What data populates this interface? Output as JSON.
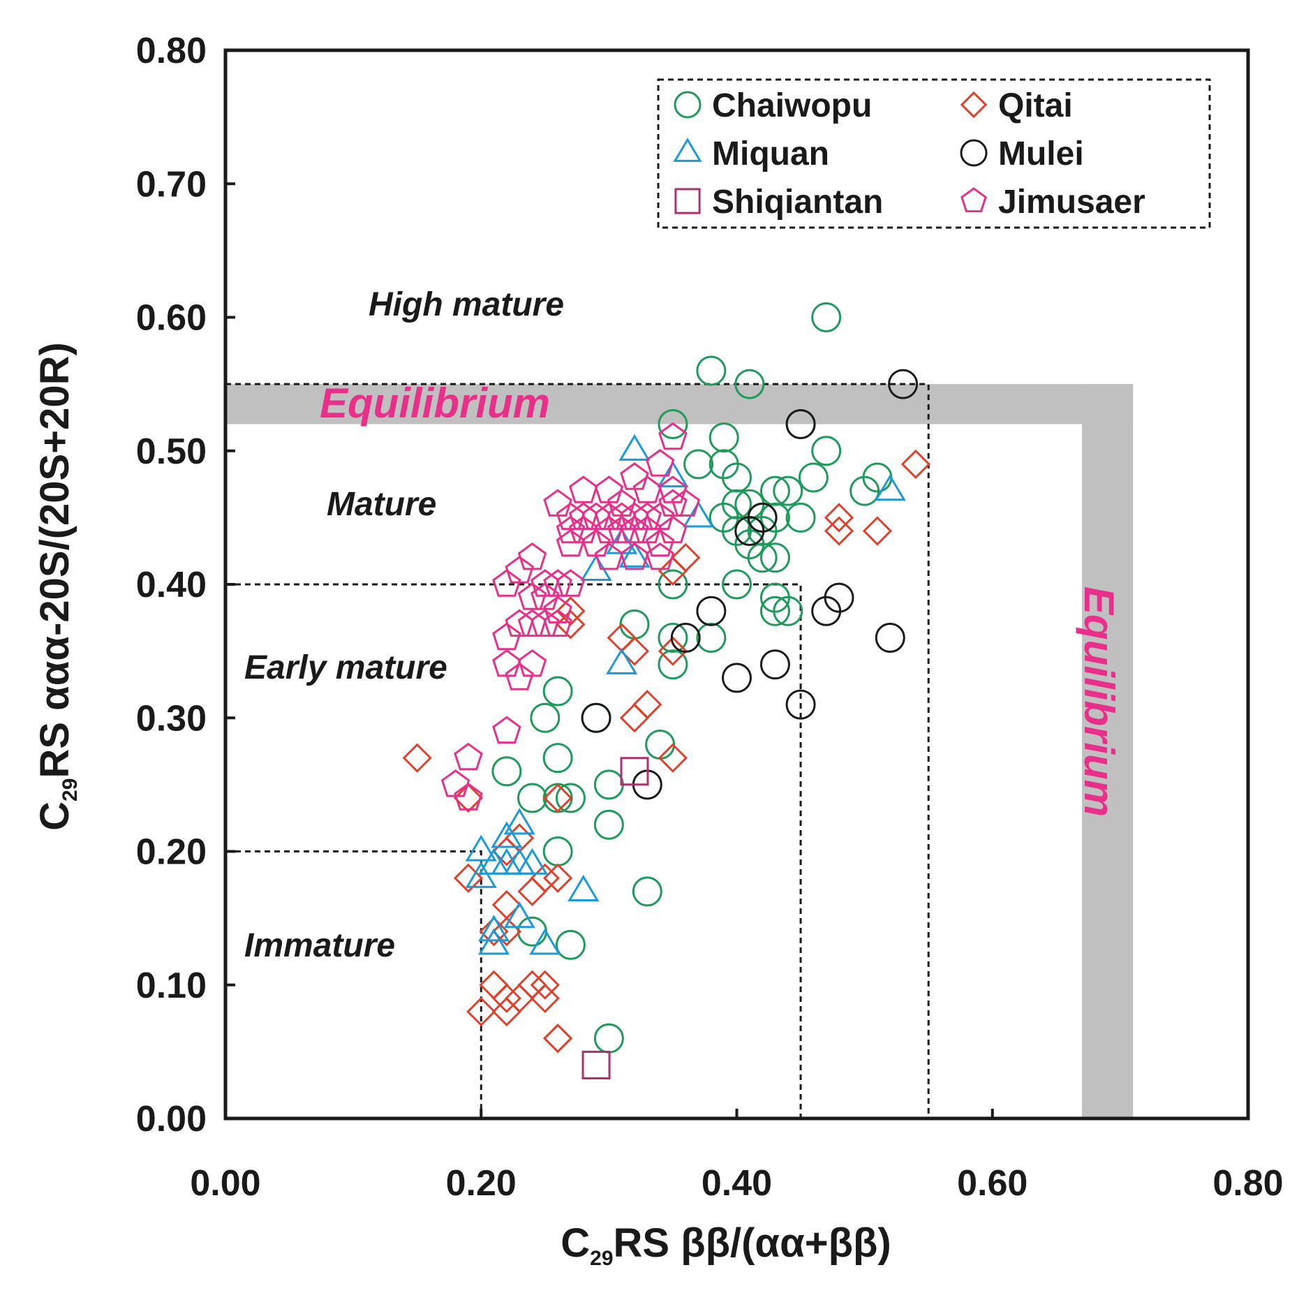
{
  "chart_data": {
    "type": "scatter",
    "xlabel_main": "C",
    "xlabel_sub": "29",
    "xlabel_rest": "RS ββ/(αα+ββ)",
    "ylabel_main": "C",
    "ylabel_sub": "29",
    "ylabel_rest": "RS ααα-20S/(20S+20R)",
    "xlim": [
      0,
      0.8
    ],
    "ylim": [
      0,
      0.8
    ],
    "xticks": [
      "0.00",
      "0.20",
      "0.40",
      "0.60",
      "0.80"
    ],
    "yticks": [
      "0.00",
      "0.10",
      "0.20",
      "0.30",
      "0.40",
      "0.50",
      "0.60",
      "0.70",
      "0.80"
    ],
    "legend_position": "top-right",
    "zones": {
      "high_mature": "High mature",
      "mature": "Mature",
      "early_mature": "Early mature",
      "immature": "Immature",
      "equilibrium_h": "Equilibrium",
      "equilibrium_v": "Equilibrium"
    },
    "equilibrium_bands": {
      "horizontal_y": [
        0.52,
        0.55
      ],
      "vertical_x": [
        0.67,
        0.71
      ],
      "color": "#c0c0c0"
    },
    "maturity_boundaries": [
      {
        "x": 0.2,
        "y": 0.2
      },
      {
        "x": 0.45,
        "y": 0.4
      },
      {
        "x": 0.55,
        "y": 0.55
      }
    ],
    "series": [
      {
        "name": "Chaiwopu",
        "marker": "circle",
        "color": "#1e9a5a",
        "points": [
          [
            0.47,
            0.6
          ],
          [
            0.38,
            0.56
          ],
          [
            0.41,
            0.55
          ],
          [
            0.35,
            0.52
          ],
          [
            0.45,
            0.52
          ],
          [
            0.39,
            0.51
          ],
          [
            0.37,
            0.49
          ],
          [
            0.39,
            0.49
          ],
          [
            0.4,
            0.48
          ],
          [
            0.47,
            0.5
          ],
          [
            0.46,
            0.48
          ],
          [
            0.43,
            0.47
          ],
          [
            0.44,
            0.47
          ],
          [
            0.4,
            0.46
          ],
          [
            0.41,
            0.46
          ],
          [
            0.42,
            0.45
          ],
          [
            0.43,
            0.45
          ],
          [
            0.45,
            0.45
          ],
          [
            0.39,
            0.45
          ],
          [
            0.4,
            0.44
          ],
          [
            0.42,
            0.44
          ],
          [
            0.41,
            0.43
          ],
          [
            0.42,
            0.42
          ],
          [
            0.43,
            0.42
          ],
          [
            0.4,
            0.4
          ],
          [
            0.43,
            0.39
          ],
          [
            0.43,
            0.38
          ],
          [
            0.44,
            0.38
          ],
          [
            0.35,
            0.4
          ],
          [
            0.35,
            0.36
          ],
          [
            0.38,
            0.36
          ],
          [
            0.35,
            0.34
          ],
          [
            0.32,
            0.37
          ],
          [
            0.5,
            0.47
          ],
          [
            0.51,
            0.48
          ],
          [
            0.26,
            0.32
          ],
          [
            0.25,
            0.3
          ],
          [
            0.26,
            0.27
          ],
          [
            0.22,
            0.26
          ],
          [
            0.24,
            0.24
          ],
          [
            0.26,
            0.24
          ],
          [
            0.27,
            0.24
          ],
          [
            0.3,
            0.25
          ],
          [
            0.3,
            0.22
          ],
          [
            0.29,
            0.3
          ],
          [
            0.34,
            0.28
          ],
          [
            0.33,
            0.17
          ],
          [
            0.26,
            0.2
          ],
          [
            0.24,
            0.14
          ],
          [
            0.27,
            0.13
          ],
          [
            0.3,
            0.06
          ]
        ]
      },
      {
        "name": "Qitai",
        "marker": "diamond",
        "color": "#e0402a",
        "points": [
          [
            0.54,
            0.49
          ],
          [
            0.48,
            0.45
          ],
          [
            0.48,
            0.44
          ],
          [
            0.51,
            0.44
          ],
          [
            0.36,
            0.42
          ],
          [
            0.35,
            0.41
          ],
          [
            0.27,
            0.38
          ],
          [
            0.27,
            0.37
          ],
          [
            0.31,
            0.36
          ],
          [
            0.32,
            0.35
          ],
          [
            0.35,
            0.35
          ],
          [
            0.33,
            0.31
          ],
          [
            0.32,
            0.3
          ],
          [
            0.35,
            0.27
          ],
          [
            0.15,
            0.27
          ],
          [
            0.19,
            0.24
          ],
          [
            0.26,
            0.24
          ],
          [
            0.23,
            0.21
          ],
          [
            0.22,
            0.2
          ],
          [
            0.19,
            0.18
          ],
          [
            0.25,
            0.18
          ],
          [
            0.26,
            0.18
          ],
          [
            0.24,
            0.17
          ],
          [
            0.22,
            0.16
          ],
          [
            0.21,
            0.14
          ],
          [
            0.22,
            0.14
          ],
          [
            0.21,
            0.1
          ],
          [
            0.23,
            0.09
          ],
          [
            0.22,
            0.09
          ],
          [
            0.24,
            0.1
          ],
          [
            0.25,
            0.1
          ],
          [
            0.25,
            0.09
          ],
          [
            0.2,
            0.08
          ],
          [
            0.22,
            0.08
          ],
          [
            0.26,
            0.06
          ],
          [
            0.26,
            0.06
          ]
        ]
      },
      {
        "name": "Miquan",
        "marker": "triangle",
        "color": "#1a9ad6",
        "points": [
          [
            0.32,
            0.5
          ],
          [
            0.35,
            0.48
          ],
          [
            0.37,
            0.45
          ],
          [
            0.52,
            0.47
          ],
          [
            0.31,
            0.43
          ],
          [
            0.29,
            0.41
          ],
          [
            0.32,
            0.42
          ],
          [
            0.31,
            0.34
          ],
          [
            0.23,
            0.22
          ],
          [
            0.22,
            0.21
          ],
          [
            0.2,
            0.2
          ],
          [
            0.21,
            0.19
          ],
          [
            0.22,
            0.19
          ],
          [
            0.23,
            0.19
          ],
          [
            0.2,
            0.18
          ],
          [
            0.24,
            0.19
          ],
          [
            0.28,
            0.17
          ],
          [
            0.23,
            0.15
          ],
          [
            0.21,
            0.14
          ],
          [
            0.25,
            0.13
          ],
          [
            0.21,
            0.13
          ]
        ]
      },
      {
        "name": "Mulei",
        "marker": "circle",
        "color": "#1a1a1a",
        "points": [
          [
            0.53,
            0.55
          ],
          [
            0.45,
            0.52
          ],
          [
            0.42,
            0.45
          ],
          [
            0.41,
            0.44
          ],
          [
            0.38,
            0.38
          ],
          [
            0.36,
            0.36
          ],
          [
            0.47,
            0.38
          ],
          [
            0.48,
            0.39
          ],
          [
            0.52,
            0.36
          ],
          [
            0.4,
            0.33
          ],
          [
            0.43,
            0.34
          ],
          [
            0.45,
            0.31
          ],
          [
            0.29,
            0.3
          ],
          [
            0.33,
            0.25
          ]
        ]
      },
      {
        "name": "Shiqiantan",
        "marker": "square",
        "color": "#b0306e",
        "points": [
          [
            0.32,
            0.26
          ],
          [
            0.29,
            0.04
          ]
        ]
      },
      {
        "name": "Jimusaer",
        "marker": "pentagon",
        "color": "#e8308a",
        "points": [
          [
            0.35,
            0.51
          ],
          [
            0.34,
            0.49
          ],
          [
            0.32,
            0.48
          ],
          [
            0.33,
            0.47
          ],
          [
            0.35,
            0.47
          ],
          [
            0.28,
            0.47
          ],
          [
            0.3,
            0.47
          ],
          [
            0.31,
            0.46
          ],
          [
            0.26,
            0.46
          ],
          [
            0.27,
            0.45
          ],
          [
            0.28,
            0.45
          ],
          [
            0.29,
            0.45
          ],
          [
            0.3,
            0.45
          ],
          [
            0.31,
            0.45
          ],
          [
            0.32,
            0.45
          ],
          [
            0.33,
            0.45
          ],
          [
            0.34,
            0.45
          ],
          [
            0.35,
            0.46
          ],
          [
            0.36,
            0.46
          ],
          [
            0.27,
            0.44
          ],
          [
            0.28,
            0.44
          ],
          [
            0.3,
            0.44
          ],
          [
            0.31,
            0.44
          ],
          [
            0.32,
            0.44
          ],
          [
            0.33,
            0.44
          ],
          [
            0.34,
            0.43
          ],
          [
            0.35,
            0.44
          ],
          [
            0.29,
            0.43
          ],
          [
            0.3,
            0.42
          ],
          [
            0.32,
            0.42
          ],
          [
            0.27,
            0.43
          ],
          [
            0.34,
            0.42
          ],
          [
            0.24,
            0.42
          ],
          [
            0.23,
            0.41
          ],
          [
            0.25,
            0.4
          ],
          [
            0.26,
            0.4
          ],
          [
            0.27,
            0.4
          ],
          [
            0.24,
            0.39
          ],
          [
            0.25,
            0.39
          ],
          [
            0.22,
            0.4
          ],
          [
            0.26,
            0.38
          ],
          [
            0.24,
            0.37
          ],
          [
            0.23,
            0.37
          ],
          [
            0.22,
            0.36
          ],
          [
            0.25,
            0.37
          ],
          [
            0.26,
            0.37
          ],
          [
            0.22,
            0.34
          ],
          [
            0.24,
            0.34
          ],
          [
            0.23,
            0.33
          ],
          [
            0.22,
            0.29
          ],
          [
            0.19,
            0.27
          ],
          [
            0.18,
            0.25
          ],
          [
            0.19,
            0.24
          ]
        ]
      }
    ]
  }
}
